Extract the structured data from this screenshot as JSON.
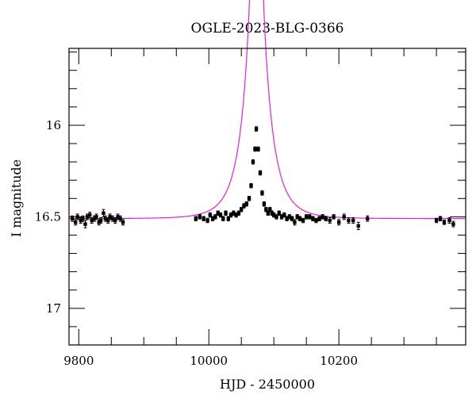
{
  "chart_data": {
    "type": "scatter",
    "title": "OGLE-2023-BLG-0366",
    "xlabel": "HJD - 2450000",
    "ylabel": "I magnitude",
    "xlim": [
      9785,
      10395
    ],
    "ylim": [
      17.2,
      15.58
    ],
    "y_inverted": true,
    "x_major_ticks": [
      9800,
      10000,
      10200
    ],
    "x_minor_ticks": [
      9850,
      9900,
      9950,
      10050,
      10100,
      10150,
      10250,
      10300,
      10350
    ],
    "y_major_ticks": [
      16,
      16.5,
      17
    ],
    "y_minor_ticks": [
      15.6,
      15.7,
      15.8,
      15.9,
      16.1,
      16.2,
      16.3,
      16.4,
      16.6,
      16.7,
      16.8,
      16.9,
      17.1,
      17.2
    ],
    "grid": false,
    "colors": {
      "data": "#000000",
      "model": "#e020e0"
    },
    "series": [
      {
        "kind": "points",
        "marker": "square-with-errorbars",
        "x": [
          9790,
          9795,
          9798,
          9803,
          9806,
          9810,
          9813,
          9817,
          9820,
          9824,
          9827,
          9831,
          9834,
          9838,
          9841,
          9845,
          9848,
          9852,
          9856,
          9860,
          9864,
          9868,
          9980,
          9986,
          9992,
          9998,
          10002,
          10006,
          10010,
          10014,
          10018,
          10022,
          10026,
          10030,
          10034,
          10038,
          10042,
          10046,
          10050,
          10054,
          10058,
          10062,
          10065,
          10068,
          10071,
          10073,
          10076,
          10079,
          10082,
          10085,
          10088,
          10091,
          10094,
          10097,
          10100,
          10104,
          10108,
          10112,
          10116,
          10120,
          10124,
          10128,
          10132,
          10136,
          10140,
          10145,
          10150,
          10155,
          10160,
          10165,
          10170,
          10175,
          10180,
          10186,
          10192,
          10200,
          10208,
          10215,
          10222,
          10230,
          10244,
          10350,
          10356,
          10362,
          10370,
          10376
        ],
        "y": [
          16.51,
          16.53,
          16.5,
          16.52,
          16.51,
          16.54,
          16.5,
          16.49,
          16.52,
          16.51,
          16.5,
          16.53,
          16.52,
          16.48,
          16.51,
          16.52,
          16.5,
          16.51,
          16.52,
          16.5,
          16.51,
          16.53,
          16.51,
          16.5,
          16.51,
          16.52,
          16.49,
          16.51,
          16.5,
          16.48,
          16.49,
          16.51,
          16.48,
          16.51,
          16.49,
          16.48,
          16.49,
          16.48,
          16.46,
          16.44,
          16.43,
          16.4,
          16.33,
          16.2,
          16.13,
          16.02,
          16.13,
          16.26,
          16.37,
          16.43,
          16.46,
          16.48,
          16.46,
          16.48,
          16.49,
          16.5,
          16.48,
          16.5,
          16.49,
          16.51,
          16.5,
          16.51,
          16.53,
          16.5,
          16.51,
          16.52,
          16.5,
          16.5,
          16.51,
          16.52,
          16.51,
          16.5,
          16.51,
          16.52,
          16.5,
          16.53,
          16.5,
          16.52,
          16.52,
          16.55,
          16.51,
          16.52,
          16.51,
          16.53,
          16.52,
          16.54
        ],
        "yerr": [
          0.015,
          0.015,
          0.015,
          0.015,
          0.015,
          0.02,
          0.015,
          0.015,
          0.015,
          0.015,
          0.015,
          0.015,
          0.015,
          0.02,
          0.015,
          0.015,
          0.015,
          0.015,
          0.015,
          0.015,
          0.015,
          0.015,
          0.012,
          0.012,
          0.012,
          0.012,
          0.012,
          0.012,
          0.012,
          0.012,
          0.012,
          0.012,
          0.012,
          0.012,
          0.012,
          0.012,
          0.012,
          0.012,
          0.012,
          0.012,
          0.012,
          0.012,
          0.012,
          0.012,
          0.012,
          0.012,
          0.012,
          0.012,
          0.012,
          0.012,
          0.012,
          0.012,
          0.012,
          0.012,
          0.012,
          0.012,
          0.012,
          0.012,
          0.012,
          0.012,
          0.012,
          0.012,
          0.015,
          0.012,
          0.012,
          0.012,
          0.012,
          0.012,
          0.012,
          0.012,
          0.012,
          0.012,
          0.012,
          0.015,
          0.012,
          0.015,
          0.015,
          0.015,
          0.015,
          0.02,
          0.015,
          0.012,
          0.012,
          0.012,
          0.015,
          0.015
        ]
      },
      {
        "kind": "model",
        "model": "point-lens",
        "t0": 10073.3,
        "tE": 32,
        "u0": 0.09,
        "baseline": 16.51
      }
    ]
  }
}
